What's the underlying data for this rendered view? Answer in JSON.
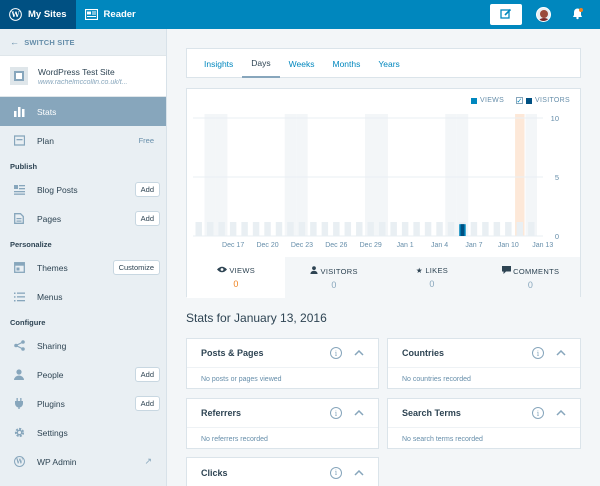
{
  "masterbar": {
    "my_sites": "My Sites",
    "reader": "Reader",
    "brand_color": "#0087be"
  },
  "sidebar": {
    "switch_site": "SWITCH SITE",
    "site_name": "WordPress Test Site",
    "site_url": "www.rachelmccollin.co.uk/t...",
    "stats": "Stats",
    "plan": "Plan",
    "plan_badge": "Free",
    "publish_header": "Publish",
    "blog_posts": "Blog Posts",
    "pages": "Pages",
    "add_label": "Add",
    "personalize_header": "Personalize",
    "themes": "Themes",
    "customize_label": "Customize",
    "menus": "Menus",
    "configure_header": "Configure",
    "sharing": "Sharing",
    "people": "People",
    "plugins": "Plugins",
    "settings": "Settings",
    "wp_admin": "WP Admin"
  },
  "tabs": [
    "Insights",
    "Days",
    "Weeks",
    "Months",
    "Years"
  ],
  "active_tab": "Days",
  "chart_data": {
    "type": "bar",
    "legend": [
      "VIEWS",
      "VISITORS"
    ],
    "visitors_checked": true,
    "colors": {
      "views": "#0087be",
      "visitors": "#005082",
      "weekend": "#f3f6f8",
      "selected": "#fde8d8",
      "faint": "#e9eff3"
    },
    "x_tick_labels": [
      "Dec 17",
      "Dec 20",
      "Dec 23",
      "Dec 26",
      "Dec 29",
      "Jan 1",
      "Jan 4",
      "Jan 7",
      "Jan 10",
      "Jan 13"
    ],
    "y_ticks": [
      0,
      5,
      10
    ],
    "ylim": [
      0,
      10
    ],
    "series": [
      {
        "name": "VIEWS",
        "values": [
          0,
          0,
          0,
          0,
          0,
          0,
          0,
          0,
          0,
          0,
          0,
          0,
          0,
          0,
          0,
          0,
          0,
          0,
          0,
          0,
          0,
          0,
          0,
          1,
          0,
          0,
          0,
          0,
          0,
          0
        ]
      },
      {
        "name": "VISITORS",
        "values": [
          0,
          0,
          0,
          0,
          0,
          0,
          0,
          0,
          0,
          0,
          0,
          0,
          0,
          0,
          0,
          0,
          0,
          0,
          0,
          0,
          0,
          0,
          0,
          1,
          0,
          0,
          0,
          0,
          0,
          0
        ]
      }
    ],
    "selected_index": 28
  },
  "summary": {
    "views_label": "VIEWS",
    "views": "0",
    "visitors_label": "VISITORS",
    "visitors": "0",
    "likes_label": "LIKES",
    "likes": "0",
    "comments_label": "COMMENTS",
    "comments": "0"
  },
  "stats_title": "Stats for January 13, 2016",
  "modules": {
    "posts_pages": {
      "title": "Posts & Pages",
      "empty": "No posts or pages viewed"
    },
    "countries": {
      "title": "Countries",
      "empty": "No countries recorded"
    },
    "referrers": {
      "title": "Referrers",
      "empty": "No referrers recorded"
    },
    "search_terms": {
      "title": "Search Terms",
      "empty": "No search terms recorded"
    },
    "clicks": {
      "title": "Clicks"
    }
  }
}
